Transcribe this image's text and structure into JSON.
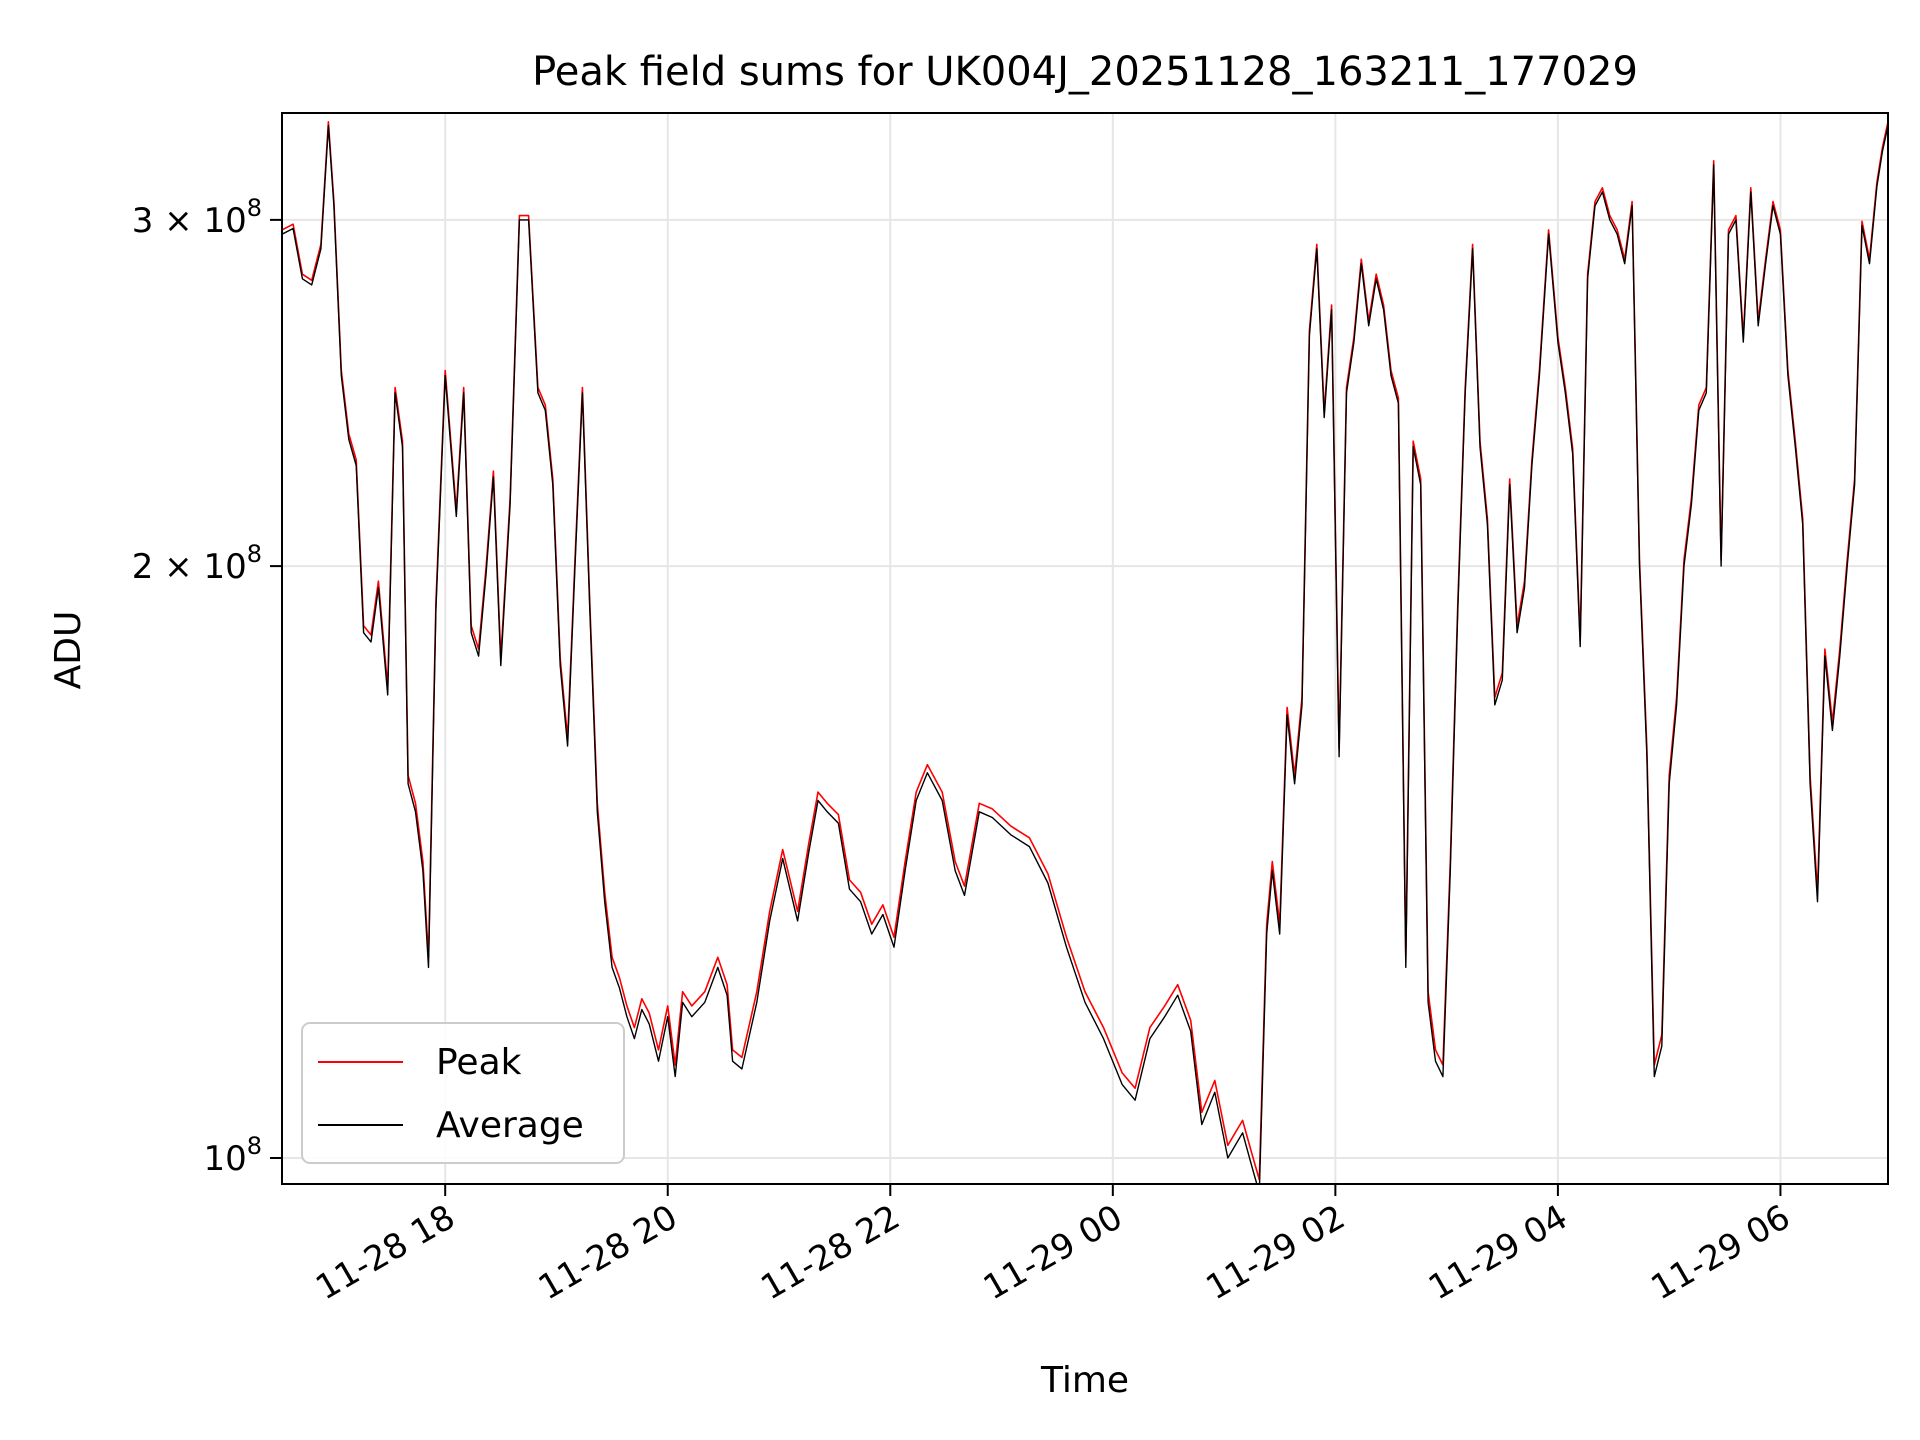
{
  "chart_data": {
    "type": "line",
    "title": "Peak field sums for UK004J_20251128_163211_177029",
    "xlabel": "Time",
    "ylabel": "ADU",
    "yscale": "log",
    "grid": true,
    "legend_position": "lower-left",
    "xlim": [
      "2025-11-28 16:32",
      "2025-11-29 06:58"
    ],
    "ylim": [
      97000000,
      340000000
    ],
    "x_ticks": [
      {
        "value": "2025-11-28 18:00",
        "label": "11-28 18"
      },
      {
        "value": "2025-11-28 20:00",
        "label": "11-28 20"
      },
      {
        "value": "2025-11-28 22:00",
        "label": "11-28 22"
      },
      {
        "value": "2025-11-29 00:00",
        "label": "11-29 00"
      },
      {
        "value": "2025-11-29 02:00",
        "label": "11-29 02"
      },
      {
        "value": "2025-11-29 04:00",
        "label": "11-29 04"
      },
      {
        "value": "2025-11-29 06:00",
        "label": "11-29 06"
      }
    ],
    "y_ticks": [
      {
        "value": 100000000,
        "base": "10",
        "exp": "8"
      },
      {
        "value": 200000000,
        "base": "2 × 10",
        "exp": "8"
      },
      {
        "value": 300000000,
        "base": "3 × 10",
        "exp": "8"
      }
    ],
    "series": [
      {
        "name": "Peak",
        "color": "#ff0000"
      },
      {
        "name": "Average",
        "color": "#000000"
      }
    ],
    "x": [
      "2025-11-28 16:32",
      "2025-11-28 16:38",
      "2025-11-28 16:43",
      "2025-11-28 16:48",
      "2025-11-28 16:53",
      "2025-11-28 16:57",
      "2025-11-28 17:00",
      "2025-11-28 17:04",
      "2025-11-28 17:08",
      "2025-11-28 17:12",
      "2025-11-28 17:16",
      "2025-11-28 17:20",
      "2025-11-28 17:24",
      "2025-11-28 17:29",
      "2025-11-28 17:33",
      "2025-11-28 17:37",
      "2025-11-28 17:40",
      "2025-11-28 17:44",
      "2025-11-28 17:48",
      "2025-11-28 17:51",
      "2025-11-28 17:55",
      "2025-11-28 18:00",
      "2025-11-28 18:06",
      "2025-11-28 18:10",
      "2025-11-28 18:14",
      "2025-11-28 18:18",
      "2025-11-28 18:22",
      "2025-11-28 18:26",
      "2025-11-28 18:30",
      "2025-11-28 18:35",
      "2025-11-28 18:40",
      "2025-11-28 18:45",
      "2025-11-28 18:50",
      "2025-11-28 18:54",
      "2025-11-28 18:58",
      "2025-11-28 19:02",
      "2025-11-28 19:06",
      "2025-11-28 19:10",
      "2025-11-28 19:14",
      "2025-11-28 19:18",
      "2025-11-28 19:22",
      "2025-11-28 19:26",
      "2025-11-28 19:30",
      "2025-11-28 19:34",
      "2025-11-28 19:38",
      "2025-11-28 19:42",
      "2025-11-28 19:46",
      "2025-11-28 19:50",
      "2025-11-28 19:55",
      "2025-11-28 20:00",
      "2025-11-28 20:04",
      "2025-11-28 20:08",
      "2025-11-28 20:13",
      "2025-11-28 20:20",
      "2025-11-28 20:27",
      "2025-11-28 20:32",
      "2025-11-28 20:35",
      "2025-11-28 20:40",
      "2025-11-28 20:48",
      "2025-11-28 20:55",
      "2025-11-28 21:02",
      "2025-11-28 21:10",
      "2025-11-28 21:16",
      "2025-11-28 21:21",
      "2025-11-28 21:26",
      "2025-11-28 21:32",
      "2025-11-28 21:38",
      "2025-11-28 21:44",
      "2025-11-28 21:50",
      "2025-11-28 21:56",
      "2025-11-28 22:02",
      "2025-11-28 22:08",
      "2025-11-28 22:14",
      "2025-11-28 22:20",
      "2025-11-28 22:28",
      "2025-11-28 22:35",
      "2025-11-28 22:40",
      "2025-11-28 22:48",
      "2025-11-28 22:55",
      "2025-11-28 23:05",
      "2025-11-28 23:15",
      "2025-11-28 23:25",
      "2025-11-28 23:35",
      "2025-11-28 23:45",
      "2025-11-28 23:55",
      "2025-11-29 00:05",
      "2025-11-29 00:12",
      "2025-11-29 00:20",
      "2025-11-29 00:28",
      "2025-11-29 00:35",
      "2025-11-29 00:42",
      "2025-11-29 00:48",
      "2025-11-29 00:55",
      "2025-11-29 01:02",
      "2025-11-29 01:10",
      "2025-11-29 01:15",
      "2025-11-29 01:19",
      "2025-11-29 01:23",
      "2025-11-29 01:26",
      "2025-11-29 01:30",
      "2025-11-29 01:34",
      "2025-11-29 01:38",
      "2025-11-29 01:42",
      "2025-11-29 01:46",
      "2025-11-29 01:50",
      "2025-11-29 01:54",
      "2025-11-29 01:58",
      "2025-11-29 02:02",
      "2025-11-29 02:06",
      "2025-11-29 02:10",
      "2025-11-29 02:14",
      "2025-11-29 02:18",
      "2025-11-29 02:22",
      "2025-11-29 02:26",
      "2025-11-29 02:30",
      "2025-11-29 02:34",
      "2025-11-29 02:38",
      "2025-11-29 02:42",
      "2025-11-29 02:46",
      "2025-11-29 02:50",
      "2025-11-29 02:54",
      "2025-11-29 02:58",
      "2025-11-29 03:02",
      "2025-11-29 03:06",
      "2025-11-29 03:10",
      "2025-11-29 03:14",
      "2025-11-29 03:18",
      "2025-11-29 03:22",
      "2025-11-29 03:26",
      "2025-11-29 03:30",
      "2025-11-29 03:34",
      "2025-11-29 03:38",
      "2025-11-29 03:42",
      "2025-11-29 03:46",
      "2025-11-29 03:50",
      "2025-11-29 03:55",
      "2025-11-29 04:00",
      "2025-11-29 04:04",
      "2025-11-29 04:08",
      "2025-11-29 04:12",
      "2025-11-29 04:16",
      "2025-11-29 04:20",
      "2025-11-29 04:24",
      "2025-11-29 04:28",
      "2025-11-29 04:32",
      "2025-11-29 04:36",
      "2025-11-29 04:40",
      "2025-11-29 04:44",
      "2025-11-29 04:48",
      "2025-11-29 04:52",
      "2025-11-29 04:56",
      "2025-11-29 05:00",
      "2025-11-29 05:04",
      "2025-11-29 05:08",
      "2025-11-29 05:12",
      "2025-11-29 05:16",
      "2025-11-29 05:20",
      "2025-11-29 05:24",
      "2025-11-29 05:28",
      "2025-11-29 05:32",
      "2025-11-29 05:36",
      "2025-11-29 05:40",
      "2025-11-29 05:44",
      "2025-11-29 05:48",
      "2025-11-29 05:52",
      "2025-11-29 05:56",
      "2025-11-29 06:00",
      "2025-11-29 06:04",
      "2025-11-29 06:08",
      "2025-11-29 06:12",
      "2025-11-29 06:16",
      "2025-11-29 06:20",
      "2025-11-29 06:24",
      "2025-11-29 06:28",
      "2025-11-29 06:32",
      "2025-11-29 06:36",
      "2025-11-29 06:40",
      "2025-11-29 06:44",
      "2025-11-29 06:48",
      "2025-11-29 06:52",
      "2025-11-29 06:55",
      "2025-11-29 06:58"
    ],
    "average": [
      295000000,
      297000000,
      280000000,
      278000000,
      290000000,
      335000000,
      305000000,
      250000000,
      232000000,
      225000000,
      185000000,
      183000000,
      195000000,
      172000000,
      245000000,
      230000000,
      155000000,
      150000000,
      140000000,
      125000000,
      190000000,
      250000000,
      212000000,
      245000000,
      185000000,
      180000000,
      198000000,
      222000000,
      178000000,
      215000000,
      300000000,
      300000000,
      245000000,
      240000000,
      220000000,
      178000000,
      162000000,
      200000000,
      245000000,
      190000000,
      150000000,
      135000000,
      125000000,
      122000000,
      118000000,
      115000000,
      119000000,
      117000000,
      112000000,
      118000000,
      110000000,
      120000000,
      118000000,
      120000000,
      125000000,
      121000000,
      112000000,
      111000000,
      120000000,
      132000000,
      142000000,
      132000000,
      143000000,
      152000000,
      150000000,
      148000000,
      137000000,
      135000000,
      130000000,
      133000000,
      128000000,
      140000000,
      152000000,
      157000000,
      152000000,
      140000000,
      136000000,
      150000000,
      149000000,
      146000000,
      144000000,
      138000000,
      128000000,
      120000000,
      115000000,
      109000000,
      107000000,
      115000000,
      118000000,
      121000000,
      116000000,
      104000000,
      108000000,
      100000000,
      103000000,
      99000000,
      96000000,
      130000000,
      140000000,
      130000000,
      168000000,
      155000000,
      170000000,
      262000000,
      290000000,
      238000000,
      270000000,
      160000000,
      245000000,
      260000000,
      285000000,
      265000000,
      280000000,
      270000000,
      250000000,
      242000000,
      125000000,
      230000000,
      220000000,
      120000000,
      112000000,
      110000000,
      140000000,
      190000000,
      245000000,
      290000000,
      230000000,
      210000000,
      170000000,
      175000000,
      220000000,
      185000000,
      195000000,
      225000000,
      250000000,
      295000000,
      260000000,
      245000000,
      228000000,
      182000000,
      280000000,
      305000000,
      310000000,
      300000000,
      295000000,
      285000000,
      305000000,
      200000000,
      160000000,
      110000000,
      114000000,
      155000000,
      170000000,
      200000000,
      215000000,
      240000000,
      245000000,
      320000000,
      200000000,
      295000000,
      300000000,
      260000000,
      310000000,
      265000000,
      285000000,
      305000000,
      295000000,
      250000000,
      230000000,
      210000000,
      155000000,
      135000000,
      180000000,
      165000000,
      180000000,
      200000000,
      220000000,
      298000000,
      285000000,
      312000000,
      325000000,
      335000000
    ],
    "peak": [
      296500000,
      298500000,
      281500000,
      279500000,
      291500000,
      336500000,
      306500000,
      251500000,
      233500000,
      226500000,
      186500000,
      184500000,
      196500000,
      173500000,
      246500000,
      231500000,
      156500000,
      151500000,
      141500000,
      126500000,
      191500000,
      251500000,
      213500000,
      246500000,
      186500000,
      181500000,
      199500000,
      223500000,
      179500000,
      216500000,
      301500000,
      301500000,
      246500000,
      241500000,
      221500000,
      179500000,
      163500000,
      201500000,
      246500000,
      191500000,
      151500000,
      136500000,
      126500000,
      123500000,
      119500000,
      116500000,
      120500000,
      118500000,
      113500000,
      119500000,
      111500000,
      121500000,
      119500000,
      121500000,
      126500000,
      122500000,
      113500000,
      112500000,
      121500000,
      133500000,
      143500000,
      133500000,
      144500000,
      153500000,
      151500000,
      149500000,
      138500000,
      136500000,
      131500000,
      134500000,
      129500000,
      141500000,
      153500000,
      158500000,
      153500000,
      141500000,
      137500000,
      151500000,
      150500000,
      147500000,
      145500000,
      139500000,
      129500000,
      121500000,
      116500000,
      110500000,
      108500000,
      116500000,
      119500000,
      122500000,
      117500000,
      105500000,
      109500000,
      101500000,
      104500000,
      100500000,
      97500000,
      131500000,
      141500000,
      131500000,
      169500000,
      156500000,
      171500000,
      263500000,
      291500000,
      239500000,
      271500000,
      161500000,
      246500000,
      261500000,
      286500000,
      266500000,
      281500000,
      271500000,
      251500000,
      243500000,
      126500000,
      231500000,
      221500000,
      121500000,
      113500000,
      111500000,
      141500000,
      191500000,
      246500000,
      291500000,
      231500000,
      211500000,
      171500000,
      176500000,
      221500000,
      186500000,
      196500000,
      226500000,
      251500000,
      296500000,
      261500000,
      246500000,
      229500000,
      183500000,
      281500000,
      306500000,
      311500000,
      301500000,
      296500000,
      286500000,
      306500000,
      201500000,
      161500000,
      111500000,
      115500000,
      156500000,
      171500000,
      201500000,
      216500000,
      241500000,
      246500000,
      321500000,
      201500000,
      296500000,
      301500000,
      261500000,
      311500000,
      266500000,
      286500000,
      306500000,
      296500000,
      251500000,
      231500000,
      211500000,
      156500000,
      136500000,
      181500000,
      166500000,
      181500000,
      201500000,
      221500000,
      299500000,
      286500000,
      313500000,
      326500000,
      336500000
    ]
  }
}
